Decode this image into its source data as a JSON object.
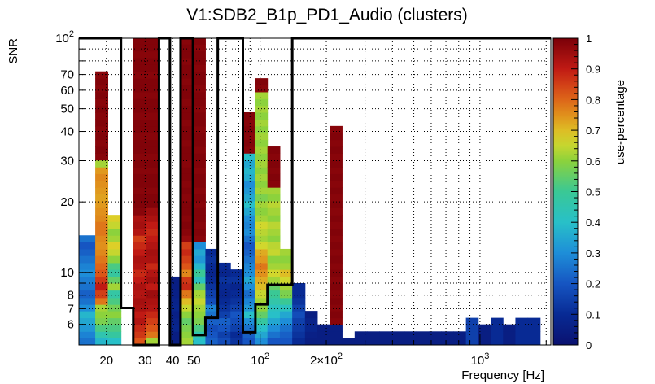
{
  "chart_data": {
    "type": "heatmap",
    "title": "V1:SDB2_B1p_PD1_Audio (clusters)",
    "xlabel": "Frequency [Hz]",
    "ylabel": "SNR",
    "colorbar_label": "use-percentage",
    "x_scale": "log",
    "y_scale": "log",
    "xlim": [
      15,
      2100
    ],
    "ylim": [
      4.9,
      100
    ],
    "zlim": [
      0,
      1
    ],
    "grid": true,
    "x_tick_labels": [
      {
        "value": 20,
        "label": "20"
      },
      {
        "value": 30,
        "label": "30"
      },
      {
        "value": 40,
        "label": "40"
      },
      {
        "value": 50,
        "label": "50"
      },
      {
        "value": 100,
        "label": "10",
        "sup": "2"
      },
      {
        "value": 200,
        "label": "2×10",
        "sup": "2"
      },
      {
        "value": 1000,
        "label": "10",
        "sup": "3"
      }
    ],
    "y_tick_labels": [
      {
        "value": 6,
        "label": "6"
      },
      {
        "value": 7,
        "label": "7"
      },
      {
        "value": 8,
        "label": "8"
      },
      {
        "value": 10,
        "label": "10"
      },
      {
        "value": 20,
        "label": "20"
      },
      {
        "value": 30,
        "label": "30"
      },
      {
        "value": 40,
        "label": "40"
      },
      {
        "value": 50,
        "label": "50"
      },
      {
        "value": 60,
        "label": "60"
      },
      {
        "value": 70,
        "label": "70"
      },
      {
        "value": 100,
        "label": "10",
        "sup": "2"
      }
    ],
    "colorbar_ticks": [
      {
        "value": 0,
        "label": "0"
      },
      {
        "value": 0.1,
        "label": "0.1"
      },
      {
        "value": 0.2,
        "label": "0.2"
      },
      {
        "value": 0.3,
        "label": "0.3"
      },
      {
        "value": 0.4,
        "label": "0.4"
      },
      {
        "value": 0.5,
        "label": "0.5"
      },
      {
        "value": 0.6,
        "label": "0.6"
      },
      {
        "value": 0.7,
        "label": "0.7"
      },
      {
        "value": 0.8,
        "label": "0.8"
      },
      {
        "value": 0.9,
        "label": "0.9"
      },
      {
        "value": 1,
        "label": "1"
      }
    ],
    "snr_bins": [
      4.9,
      5.25,
      5.6,
      6.0,
      6.4,
      6.85,
      7.3,
      7.8,
      8.4,
      9.0,
      9.6,
      10.3,
      11.0,
      11.8,
      12.6,
      13.5,
      14.4,
      15.4,
      16.5,
      17.6,
      18.9,
      20.2,
      21.6,
      23.1,
      24.7,
      26.4,
      28.2,
      30.2,
      32.3,
      34.5,
      36.9,
      39.5,
      42.2,
      45.1,
      48.3,
      51.6,
      55.2,
      59.0,
      63.1,
      67.5,
      72.2,
      77.2,
      82.5,
      88.2,
      94.3,
      100
    ],
    "columns": [
      {
        "f": [
          15,
          17.8
        ],
        "cells": [
          0.25,
          0.28,
          0.32,
          0.35,
          0.38,
          0.3,
          0.25,
          0.22,
          0.25,
          0.27,
          0.3,
          0.28,
          0.25,
          0.22,
          0.2,
          0.25
        ]
      },
      {
        "f": [
          17.8,
          20.3
        ],
        "cells": [
          0.38,
          0.45,
          0.52,
          0.58,
          0.6,
          0.62,
          0.78,
          0.85,
          0.9,
          0.86,
          0.82,
          0.8,
          0.78,
          0.76,
          0.75,
          0.76,
          0.78,
          0.78,
          0.76,
          0.75,
          0.74,
          0.73,
          0.74,
          0.75,
          0.76,
          0.74,
          0.62,
          0.98,
          0.99,
          0.98,
          0.99,
          0.98,
          0.99,
          0.98,
          0.99,
          0.98,
          0.99,
          0.98,
          0.99,
          0.98
        ]
      },
      {
        "f": [
          20.3,
          23.3
        ],
        "cells": [
          0.4,
          0.48,
          0.52,
          0.55,
          0.6,
          0.57,
          0.52,
          0.47,
          0.62,
          0.55,
          0.48,
          0.52,
          0.6,
          0.65,
          0.68,
          0.62,
          0.6,
          0.65,
          0.68
        ]
      },
      {
        "f": [
          23.3,
          26.5
        ],
        "cells": []
      },
      {
        "f": [
          26.5,
          30.4
        ],
        "cells": [
          0.82,
          0.86,
          0.88,
          0.92,
          0.9,
          0.93,
          0.94,
          0.92,
          0.93,
          0.9,
          0.88,
          0.92,
          0.93,
          0.9,
          0.88,
          0.85,
          0.92,
          0.94,
          0.93,
          0.98,
          0.99,
          0.99,
          0.98,
          0.99,
          0.99,
          0.98,
          0.99,
          0.98,
          0.99,
          0.99,
          0.98,
          0.99,
          0.99,
          0.98,
          0.99,
          0.99,
          0.98,
          0.99,
          0.99,
          0.98,
          0.99,
          0.99,
          0.98,
          0.99,
          0.99
        ]
      },
      {
        "f": [
          30.4,
          34.7
        ],
        "cells": [
          0.62,
          0.78,
          0.82,
          0.85,
          0.88,
          0.92,
          0.93,
          0.95,
          0.9,
          0.94,
          0.92,
          0.88,
          0.93,
          0.94,
          0.92,
          0.9,
          0.88,
          0.9,
          0.93,
          0.95,
          0.99,
          0.99,
          0.98,
          0.99,
          0.99,
          0.98,
          0.99,
          0.98,
          0.99,
          0.99,
          0.98,
          0.99,
          0.99,
          0.98,
          0.99,
          0.99,
          0.98,
          0.99,
          0.99,
          0.98,
          0.99,
          0.99,
          0.98,
          0.99,
          0.99
        ]
      },
      {
        "f": [
          34.7,
          38.9
        ],
        "cells": []
      },
      {
        "f": [
          38.9,
          43.5
        ],
        "cells": [
          0.05,
          0.05,
          0.08,
          0.07,
          0.06,
          0.08,
          0.07,
          0.06,
          0.05,
          0.05
        ]
      },
      {
        "f": [
          43.5,
          49.5
        ],
        "cells": [
          0.62,
          0.6,
          0.58,
          0.55,
          0.6,
          0.65,
          0.7,
          0.78,
          0.88,
          0.86,
          0.76,
          0.82,
          0.85,
          0.88,
          0.85,
          0.96,
          0.98,
          0.99,
          0.98,
          0.99,
          0.99,
          0.98,
          0.99,
          0.98,
          0.99,
          0.99,
          0.98,
          0.99,
          0.99,
          0.98,
          0.99,
          0.99,
          0.98,
          0.99,
          0.99,
          0.98,
          0.99,
          0.99,
          0.98,
          0.99,
          0.99,
          0.98,
          0.99,
          0.99,
          0.98
        ]
      },
      {
        "f": [
          49.5,
          56.4
        ],
        "cells": [
          0.4,
          0.45,
          0.52,
          0.58,
          0.6,
          0.62,
          0.65,
          0.62,
          0.55,
          0.42,
          0.5,
          0.38,
          0.32,
          0.35,
          0.3,
          0.98,
          0.99,
          0.98,
          0.99,
          0.99,
          0.98,
          0.99,
          0.98,
          0.99,
          0.99,
          0.98,
          0.99,
          0.99,
          0.98,
          0.99,
          0.99,
          0.98,
          0.99,
          0.99,
          0.98,
          0.99,
          0.99,
          0.98,
          0.99,
          0.99,
          0.98,
          0.99,
          0.99,
          0.98,
          0.99
        ]
      },
      {
        "f": [
          56.4,
          64.2
        ],
        "cells": [
          0.22,
          0.2,
          0.18,
          0.22,
          0.25,
          0.28,
          0.18,
          0.15,
          0.12,
          0.1,
          0.08,
          0.1,
          0.12,
          0.1
        ]
      },
      {
        "f": [
          64.2,
          73.3
        ],
        "cells": [
          0.18,
          0.15,
          0.2,
          0.22,
          0.15,
          0.12,
          0.1,
          0.08,
          0.1,
          0.12,
          0.08,
          0.1
        ]
      },
      {
        "f": [
          73.3,
          83.5
        ],
        "cells": [
          0.12,
          0.1,
          0.15,
          0.18,
          0.2,
          0.15,
          0.12,
          0.1,
          0.08,
          0.12,
          0.1
        ]
      },
      {
        "f": [
          83.5,
          95.2
        ],
        "cells": [
          0.2,
          0.22,
          0.25,
          0.3,
          0.4,
          0.32,
          0.28,
          0.24,
          0.3,
          0.35,
          0.3,
          0.28,
          0.25,
          0.22,
          0.2,
          0.25,
          0.3,
          0.28,
          0.3,
          0.35,
          0.4,
          0.35,
          0.32,
          0.3,
          0.36,
          0.38,
          0.35,
          0.4,
          0.98,
          0.99,
          0.98,
          0.99,
          0.98,
          0.99
        ]
      },
      {
        "f": [
          95.2,
          108
        ],
        "cells": [
          0.3,
          0.35,
          0.4,
          0.48,
          0.55,
          0.6,
          0.62,
          0.65,
          0.7,
          0.72,
          0.75,
          0.78,
          0.74,
          0.72,
          0.66,
          0.62,
          0.64,
          0.66,
          0.62,
          0.6,
          0.62,
          0.58,
          0.62,
          0.6,
          0.62,
          0.6,
          0.62,
          0.6,
          0.62,
          0.6,
          0.62,
          0.6,
          0.62,
          0.6,
          0.62,
          0.6,
          0.62,
          0.98,
          0.99
        ]
      },
      {
        "f": [
          108,
          123
        ],
        "cells": [
          0.2,
          0.25,
          0.3,
          0.35,
          0.4,
          0.42,
          0.46,
          0.5,
          0.55,
          0.62,
          0.66,
          0.62,
          0.6,
          0.65,
          0.64,
          0.6,
          0.62,
          0.64,
          0.6,
          0.62,
          0.64,
          0.6,
          0.62,
          0.98,
          0.99,
          0.98,
          0.99,
          0.98,
          0.99
        ]
      },
      {
        "f": [
          123,
          140
        ],
        "cells": [
          0.2,
          0.22,
          0.25,
          0.3,
          0.35,
          0.42,
          0.5,
          0.58,
          0.62,
          0.66,
          0.7,
          0.62,
          0.6,
          0.62
        ]
      },
      {
        "f": [
          140,
          160
        ],
        "cells": [
          0.1,
          0.12,
          0.14,
          0.15,
          0.18,
          0.15,
          0.12,
          0.1,
          0.1
        ]
      },
      {
        "f": [
          160,
          182
        ],
        "cells": [
          0.05,
          0.06,
          0.08,
          0.07,
          0.05
        ]
      },
      {
        "f": [
          182,
          207
        ],
        "cells": [
          0.05,
          0.05,
          0.05
        ]
      },
      {
        "f": [
          207,
          236
        ],
        "cells": [
          0.05,
          0.05,
          0.05,
          0.98,
          0.99,
          0.98,
          0.99,
          0.98,
          0.99,
          0.98,
          0.99,
          0.98,
          0.99,
          0.98,
          0.99,
          0.98,
          0.99,
          0.98,
          0.99,
          0.98,
          0.99,
          0.98,
          0.99,
          0.98,
          0.99,
          0.98,
          0.99,
          0.98,
          0.99,
          0.98,
          0.99,
          0.98
        ]
      },
      {
        "f": [
          236,
          269
        ],
        "cells": [
          0.05
        ]
      },
      {
        "f": [
          269,
          306
        ],
        "cells": [
          0.05,
          0.05
        ]
      },
      {
        "f": [
          306,
          348
        ],
        "cells": [
          0.05,
          0.05
        ]
      },
      {
        "f": [
          348,
          397
        ],
        "cells": [
          0.05,
          0.05
        ]
      },
      {
        "f": [
          397,
          452
        ],
        "cells": [
          0.05,
          0.05
        ]
      },
      {
        "f": [
          452,
          514
        ],
        "cells": [
          0.05,
          0.05
        ]
      },
      {
        "f": [
          514,
          585
        ],
        "cells": [
          0.05,
          0.05
        ]
      },
      {
        "f": [
          585,
          666
        ],
        "cells": [
          0.05,
          0.05
        ]
      },
      {
        "f": [
          666,
          758
        ],
        "cells": [
          0.05,
          0.05
        ]
      },
      {
        "f": [
          758,
          863
        ],
        "cells": [
          0.05,
          0.05
        ]
      },
      {
        "f": [
          863,
          982
        ],
        "cells": [
          0.15,
          0.15,
          0.15,
          0.15
        ]
      },
      {
        "f": [
          982,
          1118
        ],
        "cells": [
          0.05,
          0.05,
          0.05
        ]
      },
      {
        "f": [
          1118,
          1273
        ],
        "cells": [
          0.1,
          0.1,
          0.1,
          0.1
        ]
      },
      {
        "f": [
          1273,
          1449
        ],
        "cells": [
          0.05,
          0.05,
          0.05
        ]
      },
      {
        "f": [
          1449,
          1649
        ],
        "cells": [
          0.1,
          0.1,
          0.1,
          0.1
        ]
      },
      {
        "f": [
          1649,
          1877
        ],
        "cells": [
          0.1,
          0.1,
          0.1,
          0.1
        ]
      },
      {
        "f": [
          1877,
          2100
        ],
        "cells": []
      }
    ],
    "boundary_steps": [
      {
        "f": 15,
        "snr": 100
      },
      {
        "f": 23.3,
        "snr": 100
      },
      {
        "f": 23.3,
        "snr": 7.05
      },
      {
        "f": 26.5,
        "snr": 7.05
      },
      {
        "f": 26.5,
        "snr": 4.9
      },
      {
        "f": 34.7,
        "snr": 4.9
      },
      {
        "f": 34.7,
        "snr": 100
      },
      {
        "f": 38.9,
        "snr": 100
      },
      {
        "f": 38.9,
        "snr": 4.9
      },
      {
        "f": 43.5,
        "snr": 4.9
      },
      {
        "f": 43.5,
        "snr": 100
      },
      {
        "f": 49.5,
        "snr": 100
      },
      {
        "f": 49.5,
        "snr": 5.4
      },
      {
        "f": 56.4,
        "snr": 5.4
      },
      {
        "f": 56.4,
        "snr": 6.4
      },
      {
        "f": 64.2,
        "snr": 6.4
      },
      {
        "f": 64.2,
        "snr": 100
      },
      {
        "f": 83.5,
        "snr": 100
      },
      {
        "f": 83.5,
        "snr": 5.55
      },
      {
        "f": 95.2,
        "snr": 5.55
      },
      {
        "f": 95.2,
        "snr": 7.3
      },
      {
        "f": 108,
        "snr": 7.3
      },
      {
        "f": 108,
        "snr": 8.85
      },
      {
        "f": 140,
        "snr": 8.85
      },
      {
        "f": 140,
        "snr": 100
      },
      {
        "f": 2100,
        "snr": 100
      }
    ]
  }
}
